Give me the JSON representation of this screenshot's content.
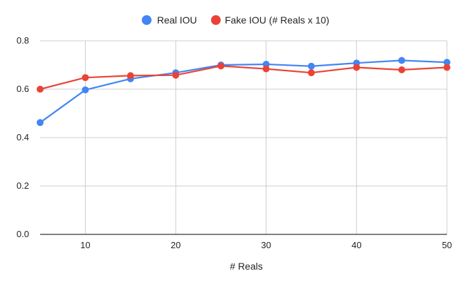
{
  "chart_data": {
    "type": "line",
    "title": "",
    "xlabel": "# Reals",
    "ylabel": "",
    "x": [
      5,
      10,
      15,
      20,
      25,
      30,
      35,
      40,
      45,
      50
    ],
    "xlim": [
      5,
      50
    ],
    "ylim": [
      0,
      0.8
    ],
    "x_ticks": [
      "10",
      "20",
      "30",
      "40",
      "50"
    ],
    "x_tick_values": [
      10,
      20,
      30,
      40,
      50
    ],
    "y_ticks": [
      "0.0",
      "0.2",
      "0.4",
      "0.6",
      "0.8"
    ],
    "y_tick_values": [
      0,
      0.2,
      0.4,
      0.6,
      0.8
    ],
    "grid": true,
    "legend_position": "top-center",
    "series": [
      {
        "name": "Real IOU",
        "color": "#4285F4",
        "values": [
          0.462,
          0.597,
          0.643,
          0.668,
          0.7,
          0.703,
          0.695,
          0.708,
          0.719,
          0.711
        ]
      },
      {
        "name": "Fake IOU (# Reals x 10)",
        "color": "#EA4335",
        "values": [
          0.6,
          0.648,
          0.656,
          0.658,
          0.696,
          0.684,
          0.668,
          0.69,
          0.68,
          0.69
        ]
      }
    ]
  }
}
